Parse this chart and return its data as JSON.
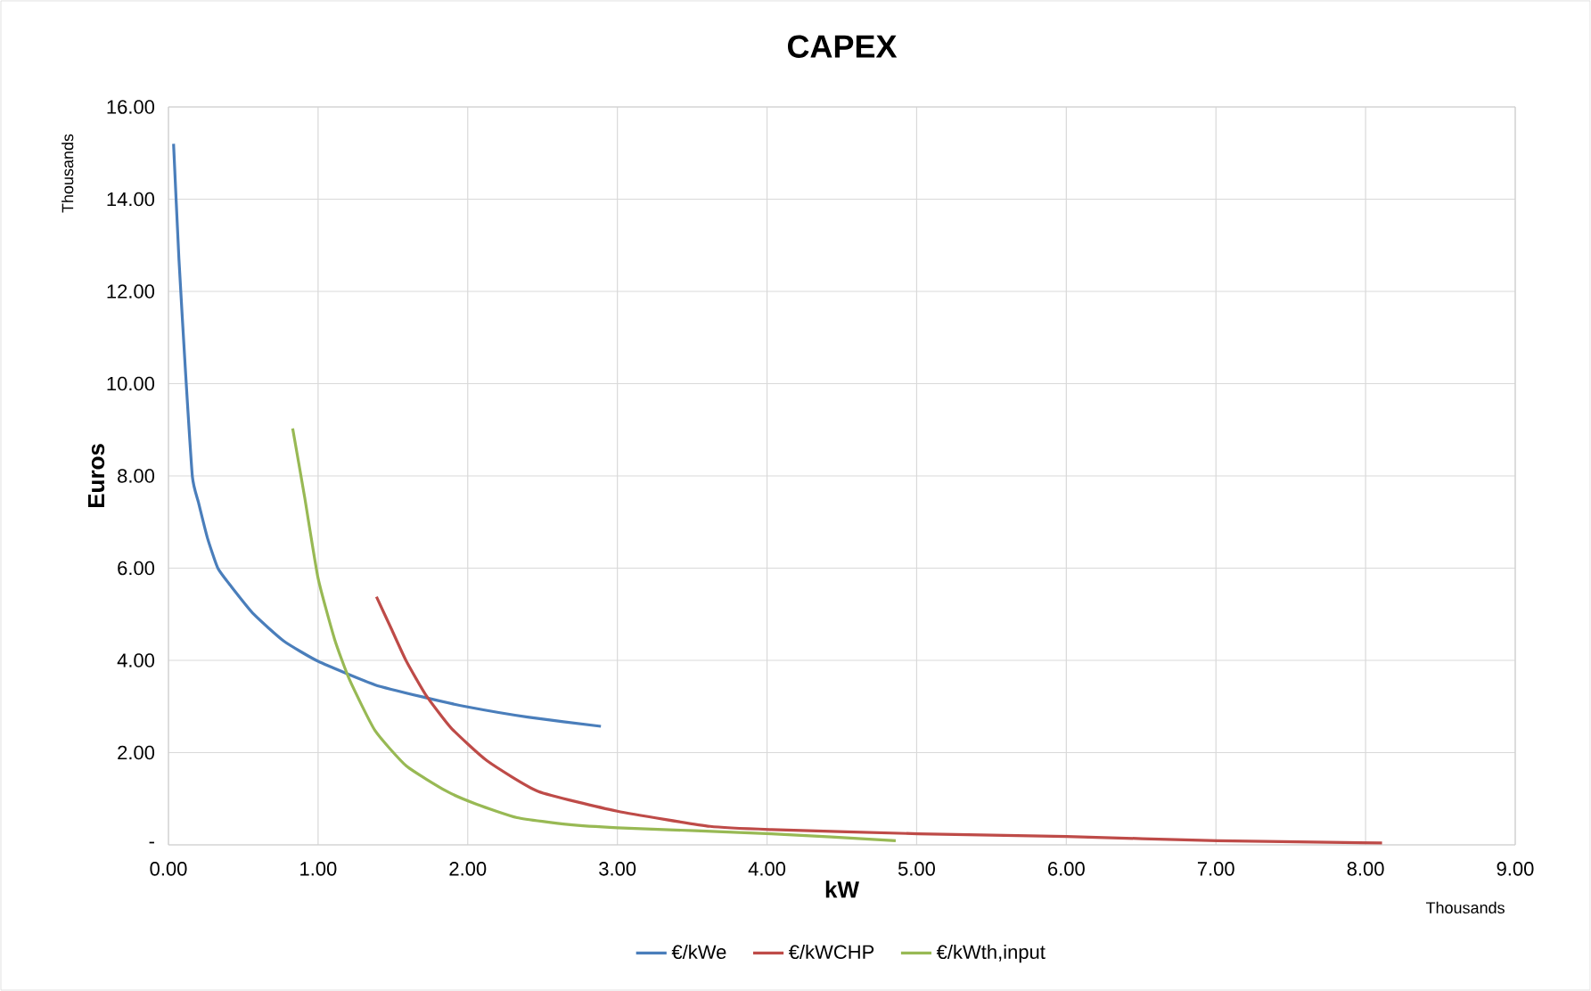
{
  "chart_data": {
    "type": "line",
    "title": "CAPEX",
    "xlabel": "kW",
    "ylabel": "Euros",
    "annotations": [
      "Thousands",
      "Thousands"
    ],
    "xlim": [
      0,
      9
    ],
    "ylim": [
      0,
      16
    ],
    "xticks": [
      {
        "value": 0,
        "label": "0.00"
      },
      {
        "value": 1,
        "label": "1.00"
      },
      {
        "value": 2,
        "label": "2.00"
      },
      {
        "value": 3,
        "label": "3.00"
      },
      {
        "value": 4,
        "label": "4.00"
      },
      {
        "value": 5,
        "label": "5.00"
      },
      {
        "value": 6,
        "label": "6.00"
      },
      {
        "value": 7,
        "label": "7.00"
      },
      {
        "value": 8,
        "label": "8.00"
      },
      {
        "value": 9,
        "label": "9.00"
      }
    ],
    "yticks": [
      {
        "value": 0,
        "label": "-"
      },
      {
        "value": 2,
        "label": "2.00"
      },
      {
        "value": 4,
        "label": "4.00"
      },
      {
        "value": 6,
        "label": "6.00"
      },
      {
        "value": 8,
        "label": "8.00"
      },
      {
        "value": 10,
        "label": "10.00"
      },
      {
        "value": 12,
        "label": "12.00"
      },
      {
        "value": 14,
        "label": "14.00"
      },
      {
        "value": 16,
        "label": "16.00"
      }
    ],
    "grid": true,
    "legend": "bottom",
    "series": [
      {
        "name": "€/kWe",
        "color": "#4a7ebb",
        "x": [
          0.034,
          0.07,
          0.115,
          0.16,
          0.2,
          0.26,
          0.33,
          0.42,
          0.57,
          0.77,
          1.0,
          1.38,
          1.72,
          2.0,
          2.4,
          2.89
        ],
        "values": [
          15.2,
          12.7,
          10.2,
          7.98,
          7.43,
          6.66,
          6.0,
          5.6,
          5.0,
          4.42,
          3.98,
          3.47,
          3.19,
          2.99,
          2.77,
          2.57
        ]
      },
      {
        "name": "€/kWCHP",
        "color": "#be4b48",
        "x": [
          1.39,
          1.49,
          1.59,
          1.72,
          1.89,
          2.13,
          2.47,
          3.0,
          3.62,
          4.03,
          5.01,
          6.0,
          7.01,
          8.11
        ],
        "values": [
          5.38,
          4.68,
          3.98,
          3.25,
          2.53,
          1.82,
          1.16,
          0.73,
          0.4,
          0.33,
          0.24,
          0.18,
          0.09,
          0.04
        ]
      },
      {
        "name": "€/kWth,input",
        "color": "#98b954",
        "x": [
          0.83,
          0.91,
          1.0,
          1.11,
          1.21,
          1.38,
          1.59,
          1.86,
          2.06,
          2.33,
          2.67,
          3.0,
          4.03,
          4.86
        ],
        "values": [
          9.03,
          7.54,
          5.78,
          4.46,
          3.58,
          2.48,
          1.71,
          1.16,
          0.88,
          0.59,
          0.44,
          0.37,
          0.24,
          0.09
        ]
      }
    ]
  }
}
